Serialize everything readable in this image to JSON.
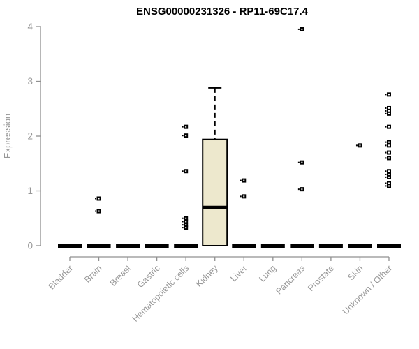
{
  "chart_data": {
    "type": "boxplot",
    "title": "ENSG00000231326 - RP11-69C17.4",
    "ylabel": "Expression",
    "xlabel": "",
    "ylim": [
      0,
      4
    ],
    "yticks": [
      0,
      1,
      2,
      3,
      4
    ],
    "grid": false,
    "legend": "none",
    "categories": [
      "Bladder",
      "Brain",
      "Breast",
      "Gastric",
      "Hematopoietic cells",
      "Kidney",
      "Liver",
      "Lung",
      "Pancreas",
      "Prostate",
      "Skin",
      "Unknown / Other"
    ],
    "boxes": [
      {
        "category": "Bladder",
        "whisker_low": 0,
        "q1": 0,
        "median": 0,
        "q3": 0,
        "whisker_high": 0
      },
      {
        "category": "Brain",
        "whisker_low": 0,
        "q1": 0,
        "median": 0,
        "q3": 0,
        "whisker_high": 0
      },
      {
        "category": "Breast",
        "whisker_low": 0,
        "q1": 0,
        "median": 0,
        "q3": 0,
        "whisker_high": 0
      },
      {
        "category": "Gastric",
        "whisker_low": 0,
        "q1": 0,
        "median": 0,
        "q3": 0,
        "whisker_high": 0
      },
      {
        "category": "Hematopoietic cells",
        "whisker_low": 0,
        "q1": 0,
        "median": 0,
        "q3": 0,
        "whisker_high": 0
      },
      {
        "category": "Kidney",
        "whisker_low": 0,
        "q1": 0,
        "median": 0.7,
        "q3": 1.94,
        "whisker_high": 2.88
      },
      {
        "category": "Liver",
        "whisker_low": 0,
        "q1": 0,
        "median": 0,
        "q3": 0,
        "whisker_high": 0
      },
      {
        "category": "Lung",
        "whisker_low": 0,
        "q1": 0,
        "median": 0,
        "q3": 0,
        "whisker_high": 0
      },
      {
        "category": "Pancreas",
        "whisker_low": 0,
        "q1": 0,
        "median": 0,
        "q3": 0,
        "whisker_high": 0
      },
      {
        "category": "Prostate",
        "whisker_low": 0,
        "q1": 0,
        "median": 0,
        "q3": 0,
        "whisker_high": 0
      },
      {
        "category": "Skin",
        "whisker_low": 0,
        "q1": 0,
        "median": 0,
        "q3": 0,
        "whisker_high": 0
      },
      {
        "category": "Unknown / Other",
        "whisker_low": 0,
        "q1": 0,
        "median": 0,
        "q3": 0,
        "whisker_high": 0
      }
    ],
    "outliers": [
      {
        "category": "Brain",
        "values": [
          0.86,
          0.63
        ]
      },
      {
        "category": "Hematopoietic cells",
        "values": [
          2.17,
          2.01,
          1.36,
          0.5,
          0.44,
          0.38,
          0.33
        ]
      },
      {
        "category": "Liver",
        "values": [
          1.19,
          0.9
        ]
      },
      {
        "category": "Pancreas",
        "values": [
          3.95,
          1.52,
          1.03
        ]
      },
      {
        "category": "Skin",
        "values": [
          1.83
        ]
      },
      {
        "category": "Unknown / Other",
        "values": [
          2.76,
          2.51,
          2.46,
          2.41,
          2.17,
          1.89,
          1.83,
          1.7,
          1.6,
          1.36,
          1.3,
          1.25,
          1.14,
          1.09
        ]
      }
    ],
    "colors": {
      "background": "#ffffff",
      "title": "#000000",
      "axis": "#909090",
      "tick_label": "#979797",
      "box_fill": "#EDE8CD",
      "box_border": "#000000",
      "median": "#000000",
      "point": "#000000"
    }
  }
}
